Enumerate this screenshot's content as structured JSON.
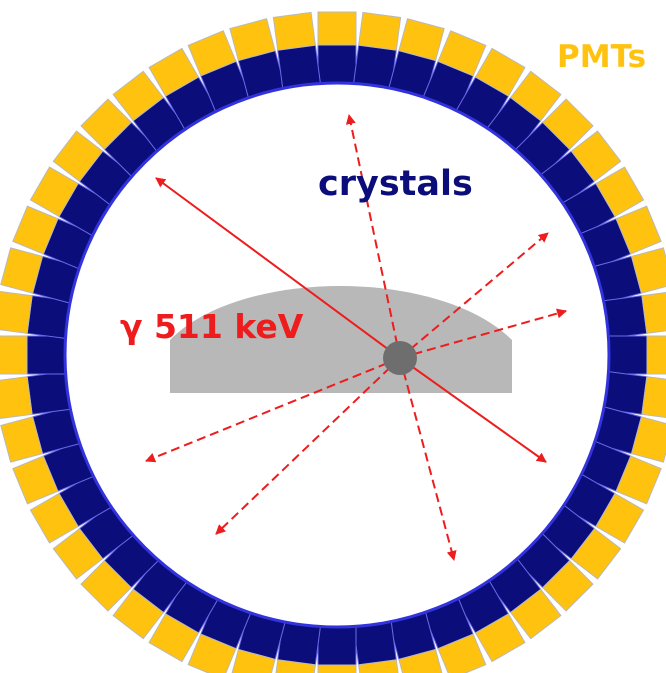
{
  "labels": {
    "pmts": "PMTs",
    "crystals": "crystals",
    "gamma": "γ 511 keV"
  },
  "detector_ring": {
    "module_count": 48
  },
  "colors": {
    "pmt": "#FFC20E",
    "crystal": "#0B0E7A",
    "module_border": "#6A6AE8",
    "pmt_border": "#B9B9B9",
    "ring_bore": "#3333DD",
    "phantom": "#B8B8B8",
    "source": "#6E6E6E",
    "gamma": "#EE1C1C",
    "label_crystals": "#0B0E7A",
    "label_pmts": "#FFC20E",
    "label_gamma": "#EE1C1C"
  },
  "icons": {
    "source": "point-source-icon",
    "phantom": "phantom-shape-icon"
  }
}
